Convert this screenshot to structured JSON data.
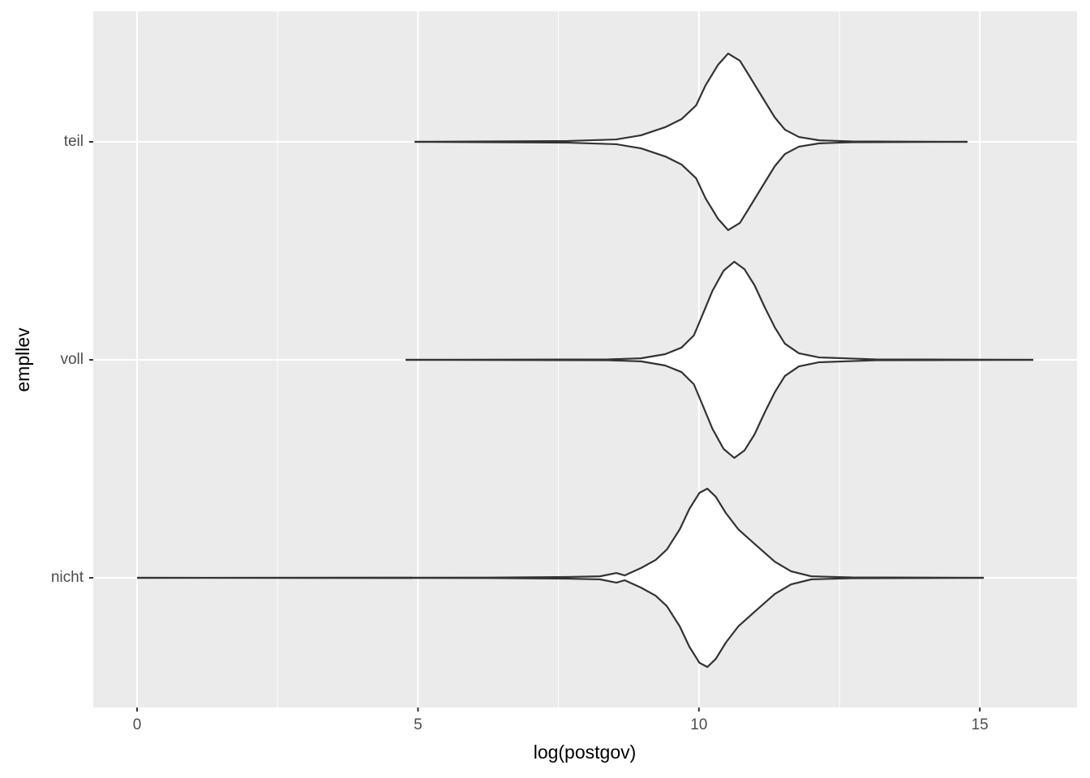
{
  "chart_data": {
    "type": "violin",
    "x_label": "log(postgov)",
    "y_label": "empllev",
    "categories": [
      "nicht",
      "voll",
      "teil"
    ],
    "xlim": [
      -0.78,
      16.73
    ],
    "xticks": [
      0,
      5,
      10,
      15
    ],
    "x_minor_grid": [
      2.5,
      7.5,
      12.5
    ],
    "grid": true,
    "fill": "#ffffff",
    "line_color": "#333333",
    "background": "#ebebeb",
    "series": [
      {
        "x": [
          0,
          6.22,
          7.67,
          8.24,
          8.53,
          8.68,
          8.97,
          9.23,
          9.43,
          9.66,
          9.83,
          10.01,
          10.15,
          10.3,
          10.48,
          10.7,
          10.99,
          11.35,
          11.64,
          12.0,
          12.72,
          15.07
        ],
        "half_width": [
          0,
          0.001,
          0.004,
          0.007,
          0.022,
          0.011,
          0.045,
          0.082,
          0.13,
          0.223,
          0.316,
          0.39,
          0.409,
          0.372,
          0.297,
          0.223,
          0.156,
          0.074,
          0.03,
          0.007,
          0.002,
          0
        ]
      },
      {
        "x": [
          4.78,
          8.39,
          8.97,
          9.4,
          9.69,
          9.91,
          10.06,
          10.24,
          10.44,
          10.63,
          10.81,
          10.99,
          11.17,
          11.35,
          11.53,
          11.78,
          12.14,
          13.15,
          15.95
        ],
        "half_width": [
          0,
          0.002,
          0.007,
          0.026,
          0.056,
          0.112,
          0.204,
          0.316,
          0.409,
          0.45,
          0.416,
          0.342,
          0.242,
          0.149,
          0.074,
          0.03,
          0.011,
          0.002,
          0
        ]
      },
      {
        "x": [
          4.94,
          7.67,
          8.53,
          8.97,
          9.4,
          9.69,
          9.95,
          10.12,
          10.34,
          10.52,
          10.73,
          10.91,
          11.13,
          11.35,
          11.53,
          11.78,
          12.14,
          12.72,
          14.78
        ],
        "half_width": [
          0,
          0.004,
          0.011,
          0.03,
          0.067,
          0.104,
          0.167,
          0.26,
          0.353,
          0.405,
          0.372,
          0.297,
          0.204,
          0.112,
          0.056,
          0.022,
          0.007,
          0.002,
          0
        ]
      }
    ]
  }
}
